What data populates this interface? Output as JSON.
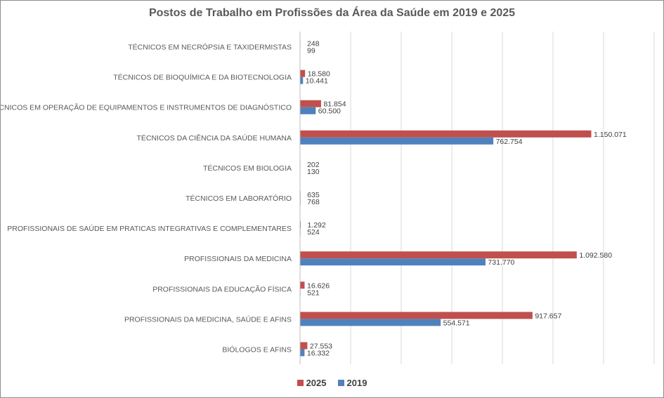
{
  "chart_data": {
    "type": "bar",
    "orientation": "horizontal",
    "title": "Postos de Trabalho em Profissões da Área da Saúde em 2019 e 2025",
    "categories": [
      "TÉCNICOS EM NECRÓPSIA E TAXIDERMISTAS",
      "TÉCNICOS DE BIOQUÍMICA E DA BIOTECNOLOGIA",
      "TÉCNICOS EM OPERAÇÃO DE EQUIPAMENTOS E INSTRUMENTOS DE DIAGNÓSTICO",
      "TÉCNICOS DA CIÊNCIA DA SAÚDE HUMANA",
      "TÉCNICOS EM BIOLOGIA",
      "TÉCNICOS EM LABORATÓRIO",
      "PROFISSIONAIS DE SAÚDE EM PRATICAS INTEGRATIVAS E COMPLEMENTARES",
      "PROFISSIONAIS DA MEDICINA",
      "PROFISSIONAIS DA EDUCAÇÃO FÍSICA",
      "PROFISSIONAIS DA MEDICINA, SAÚDE E AFINS",
      "BIÓLOGOS E AFINS"
    ],
    "series": [
      {
        "name": "2025",
        "color": "#c0504d",
        "values": [
          248,
          18580,
          81854,
          1150071,
          202,
          635,
          1292,
          1092580,
          16626,
          917657,
          27553
        ],
        "labels": [
          "248",
          "18.580",
          "81.854",
          "1.150.071",
          "202",
          "635",
          "1.292",
          "1.092.580",
          "16.626",
          "917.657",
          "27.553"
        ]
      },
      {
        "name": "2019",
        "color": "#4f81bd",
        "values": [
          99,
          10441,
          60500,
          762754,
          130,
          768,
          524,
          731770,
          521,
          554571,
          16332
        ],
        "labels": [
          "99",
          "10.441",
          "60.500",
          "762.754",
          "130",
          "768",
          "524",
          "731.770",
          "521",
          "554.571",
          "16.332"
        ]
      }
    ],
    "xlim": [
      0,
      1400000
    ],
    "x_tick_labels_shown": false,
    "grid": true,
    "gridline_step": 200000,
    "legend_placement": "bottom"
  }
}
